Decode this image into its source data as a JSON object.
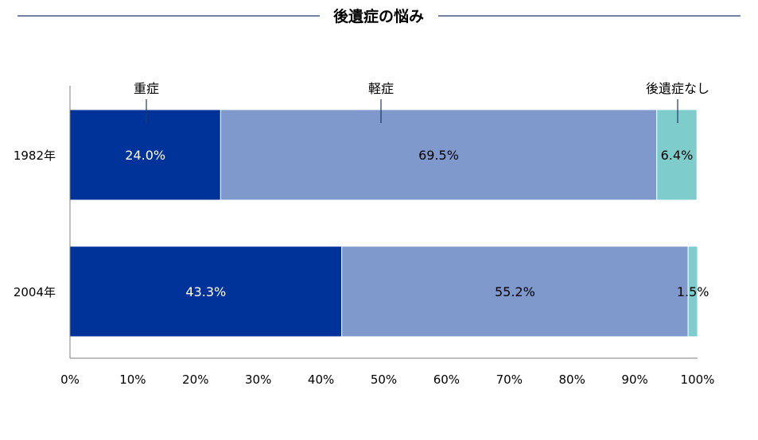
{
  "chart_data": {
    "type": "bar",
    "orientation": "horizontal",
    "stacked": true,
    "percent": true,
    "title": "後遺症の悩み",
    "categories": [
      "1982年",
      "2004年"
    ],
    "series": [
      {
        "name": "重症",
        "values": [
          24.0,
          43.3
        ],
        "labels": [
          "24.0%",
          "43.3%"
        ],
        "color": "#003399",
        "label_color": "#ffffff"
      },
      {
        "name": "軽症",
        "values": [
          69.5,
          55.2
        ],
        "labels": [
          "69.5%",
          "55.2%"
        ],
        "color": "#7f99cc",
        "label_color": "#000000"
      },
      {
        "name": "後遺症なし",
        "values": [
          6.4,
          1.5
        ],
        "labels": [
          "6.4%",
          "1.5%"
        ],
        "color": "#7fcccc",
        "label_color": "#000000"
      }
    ],
    "xlim": [
      0,
      100
    ],
    "x_ticks": [
      "0%",
      "10%",
      "20%",
      "30%",
      "40%",
      "50%",
      "60%",
      "70%",
      "80%",
      "90%",
      "100%"
    ],
    "grid": false,
    "title_rule_color": "#1f3864"
  }
}
